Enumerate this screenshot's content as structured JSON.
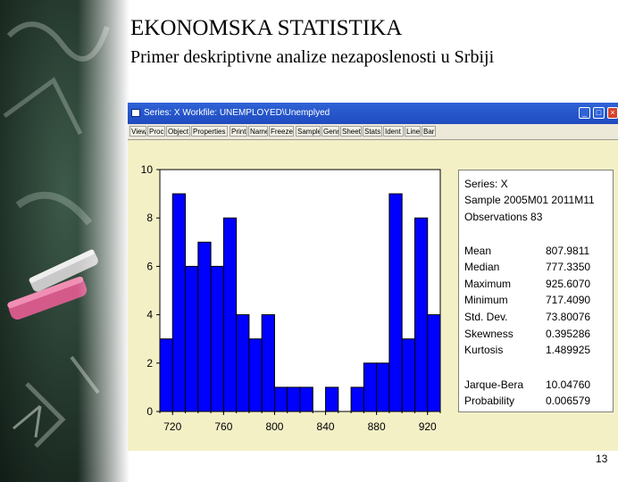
{
  "slide": {
    "title": "EKONOMSKA STATISTIKA",
    "subtitle": "Primer deskriptivne analize nezaposlenosti u Srbiji",
    "page_number": "13"
  },
  "window": {
    "title": "Series: X    Workfile: UNEMPLOYED\\Unemplyed",
    "buttons": {
      "minimize": "_",
      "maximize": "□",
      "close": "×"
    },
    "toolbar": [
      "View",
      "Proc",
      "Object",
      "Properties",
      "Print",
      "Name",
      "Freeze",
      "Sample",
      "Genr",
      "Sheet",
      "Stats",
      "Ident",
      "Line",
      "Bar"
    ]
  },
  "chart_data": {
    "type": "bar",
    "subtype": "histogram",
    "bin_width": 10,
    "x": [
      715,
      725,
      735,
      745,
      755,
      765,
      775,
      785,
      795,
      805,
      815,
      825,
      835,
      845,
      855,
      865,
      875,
      885,
      895,
      905,
      915,
      925
    ],
    "values": [
      3,
      9,
      6,
      7,
      6,
      8,
      4,
      3,
      4,
      1,
      1,
      1,
      0,
      1,
      0,
      1,
      2,
      2,
      9,
      3,
      8,
      4
    ],
    "xlim": [
      710,
      930
    ],
    "ylim": [
      0,
      10
    ],
    "xticks": [
      "720",
      "760",
      "800",
      "840",
      "880",
      "920"
    ],
    "yticks": [
      "0",
      "2",
      "4",
      "6",
      "8",
      "10"
    ],
    "bar_color": "#0000ff",
    "background": "#ffffff",
    "grid": false
  },
  "stats": {
    "header": [
      "Series: X",
      "Sample 2005M01 2011M11",
      "Observations 83"
    ],
    "rows": [
      {
        "label": "Mean",
        "value": "807.9811"
      },
      {
        "label": "Median",
        "value": "777.3350"
      },
      {
        "label": "Maximum",
        "value": "925.6070"
      },
      {
        "label": "Minimum",
        "value": "717.4090"
      },
      {
        "label": "Std. Dev.",
        "value": "73.80076"
      },
      {
        "label": "Skewness",
        "value": "0.395286"
      },
      {
        "label": "Kurtosis",
        "value": "1.489925"
      },
      {
        "label": "Jarque-Bera",
        "value": "10.04760"
      },
      {
        "label": "Probability",
        "value": "0.006579"
      }
    ]
  },
  "colors": {
    "panel_background": "#f4f0c6",
    "titlebar": "#2456c8",
    "bars": "#0000ff"
  }
}
